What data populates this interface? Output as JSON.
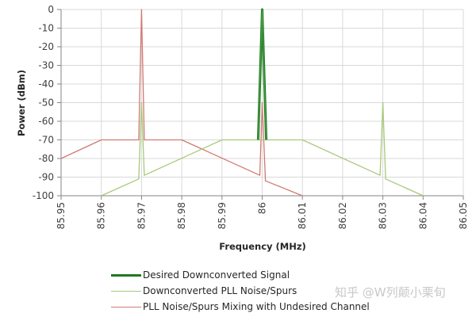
{
  "chart_data": {
    "type": "line",
    "title": "",
    "xlabel": "Frequency (MHz)",
    "ylabel": "Power (dBm)",
    "xlim": [
      85.95,
      86.05
    ],
    "ylim": [
      -100,
      0
    ],
    "x_ticks": [
      "85.95",
      "85.96",
      "85.97",
      "85.98",
      "85.99",
      "86",
      "86.01",
      "86.02",
      "86.03",
      "86.04",
      "86.05"
    ],
    "x_tick_values": [
      85.95,
      85.96,
      85.97,
      85.98,
      85.99,
      86.0,
      86.01,
      86.02,
      86.03,
      86.04,
      86.05
    ],
    "y_ticks": [
      "0",
      "-10",
      "-20",
      "-30",
      "-40",
      "-50",
      "-60",
      "-70",
      "-80",
      "-90",
      "-100"
    ],
    "y_tick_values": [
      0,
      -10,
      -20,
      -30,
      -40,
      -50,
      -60,
      -70,
      -80,
      -90,
      -100
    ],
    "grid": true,
    "legend_position": "bottom",
    "series": [
      {
        "name": "Desired Downconverted Signal",
        "color": "#1e7a1e",
        "width": 3,
        "x": [
          85.999,
          86.0,
          86.001
        ],
        "y": [
          -70,
          0,
          -70
        ]
      },
      {
        "name": "Downconverted PLL Noise/Spurs",
        "color": "#a9c97a",
        "width": 1.3,
        "x": [
          85.96,
          85.9693,
          85.97,
          85.9707,
          85.99,
          86.01,
          86.0293,
          86.03,
          86.0307,
          86.04
        ],
        "y": [
          -100,
          -91,
          -50,
          -89,
          -70,
          -70,
          -89,
          -50,
          -91,
          -100
        ]
      },
      {
        "name": "PLL Noise/Spurs Mixing with Undesired Channel",
        "color": "#d07a72",
        "width": 1.3,
        "x": [
          85.95,
          85.96,
          85.9693,
          85.97,
          85.9707,
          85.98,
          85.9994,
          86.0,
          86.0008,
          86.01
        ],
        "y": [
          -80,
          -70,
          -70,
          0,
          -70,
          -70,
          -89,
          -50,
          -92,
          -100
        ]
      }
    ]
  },
  "watermark": "知乎 @W列颠小栗旬"
}
